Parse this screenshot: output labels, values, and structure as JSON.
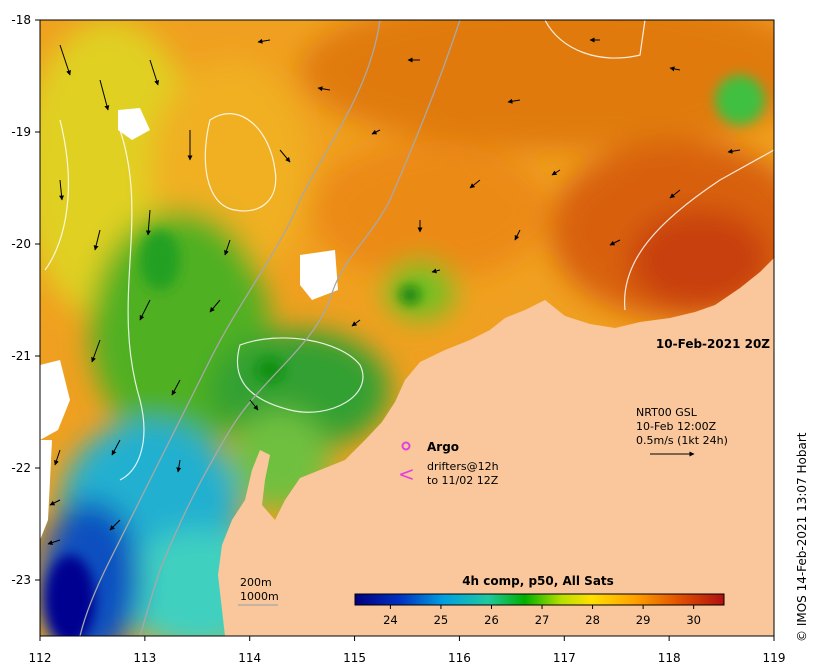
{
  "map": {
    "x_ticks": [
      "112",
      "113",
      "114",
      "115",
      "116",
      "117",
      "118",
      "119"
    ],
    "y_ticks": [
      "-18",
      "-19",
      "-20",
      "-21",
      "-22",
      "-23"
    ],
    "lon_range": [
      112,
      119
    ],
    "lat_range": [
      -23.5,
      -18
    ]
  },
  "timestamp": "10-Feb-2021 20Z",
  "current_legend": {
    "line1": "NRT00 GSL",
    "line2": "10-Feb 12:00Z",
    "line3": "0.5m/s (1kt 24h)"
  },
  "argo_legend": {
    "label": "Argo",
    "drifters_line1": "drifters@12h",
    "drifters_line2": "to 11/02 12Z",
    "argo_color": "#e040e0",
    "drifter_symbol": "<"
  },
  "isobaths": {
    "line1": "200m",
    "line2": "1000m"
  },
  "colorbar": {
    "title": "4h comp, p50, All Sats",
    "ticks": [
      "24",
      "25",
      "26",
      "27",
      "28",
      "29",
      "30"
    ],
    "range": [
      23.3,
      30.6
    ]
  },
  "credit": "© IMOS 14-Feb-2021 13:07 Hobart",
  "colors": {
    "land": "#f9c79b",
    "warm": "#e07b10",
    "cool": "#1a6ac8"
  }
}
